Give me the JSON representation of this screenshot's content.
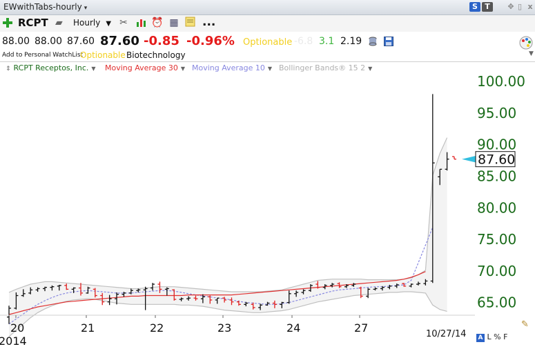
{
  "window": {
    "title": "EWwithTabs-hourly",
    "buttons": [
      "S",
      "T"
    ]
  },
  "toolbar": {
    "symbol": "RCPT",
    "interval": "Hourly",
    "more": "..."
  },
  "quote": {
    "open": "88.00",
    "high": "88.00",
    "low": "87.60",
    "last": "87.60",
    "change": "-0.85",
    "change_pct": "-0.96%",
    "optionable": "Optionable",
    "v1": "-6.8",
    "v2": "3.1",
    "v3": "2.19"
  },
  "info": {
    "watchlist": "Add to Personal WatchList",
    "optionable": "Optionable",
    "sector": "Biotechnology"
  },
  "legend": {
    "symbol": "RCPT Receptos, Inc.",
    "ma30": "Moving Average 30",
    "ma10": "Moving Average 10",
    "bb": "Bollinger Bands® 15 2"
  },
  "colors": {
    "axis_text": "#1a6b1a",
    "ma30": "#e03030",
    "ma10": "#8888e0",
    "bb": "#c0c0c0",
    "bar_up": "#111111",
    "bar_down": "#e02020",
    "last_tag": "#33bfe0"
  },
  "bottom": {
    "date_label": "10/27/14",
    "controls": "L % F",
    "year": "2014"
  },
  "chart_data": {
    "type": "line",
    "subtype": "ohlc-bars",
    "y_ticks": [
      "100.00",
      "95.00",
      "90.00",
      "85.00",
      "80.00",
      "75.00",
      "70.00",
      "65.00"
    ],
    "ylim": [
      63,
      101
    ],
    "x_ticks": [
      "20",
      "21",
      "22",
      "23",
      "24",
      "27"
    ],
    "last_price_label": "87.60",
    "bars": [
      {
        "o": 62.6,
        "h": 64.4,
        "l": 61.5,
        "c": 64.0
      },
      {
        "o": 64.0,
        "h": 66.5,
        "l": 63.8,
        "c": 66.0
      },
      {
        "o": 66.0,
        "h": 67.0,
        "l": 65.8,
        "c": 66.3
      },
      {
        "o": 66.4,
        "h": 67.3,
        "l": 66.2,
        "c": 66.9
      },
      {
        "o": 66.9,
        "h": 67.3,
        "l": 66.6,
        "c": 67.1
      },
      {
        "o": 67.1,
        "h": 67.4,
        "l": 66.7,
        "c": 67.3
      },
      {
        "o": 67.3,
        "h": 67.6,
        "l": 66.8,
        "c": 67.4
      },
      {
        "o": 67.5,
        "h": 67.7,
        "l": 66.8,
        "c": 67.6
      },
      {
        "o": 67.6,
        "h": 67.9,
        "l": 66.9,
        "c": 67.0
      },
      {
        "o": 67.0,
        "h": 67.3,
        "l": 66.4,
        "c": 67.2
      },
      {
        "o": 67.2,
        "h": 68.0,
        "l": 66.0,
        "c": 66.4
      },
      {
        "o": 66.4,
        "h": 67.4,
        "l": 66.3,
        "c": 67.2
      },
      {
        "o": 67.0,
        "h": 67.2,
        "l": 65.7,
        "c": 66.0
      },
      {
        "o": 66.0,
        "h": 66.4,
        "l": 64.5,
        "c": 65.0
      },
      {
        "o": 65.0,
        "h": 66.1,
        "l": 64.5,
        "c": 65.5
      },
      {
        "o": 65.5,
        "h": 66.5,
        "l": 64.6,
        "c": 66.2
      },
      {
        "o": 66.2,
        "h": 66.6,
        "l": 65.8,
        "c": 66.4
      },
      {
        "o": 66.4,
        "h": 67.1,
        "l": 66.2,
        "c": 66.8
      },
      {
        "o": 66.8,
        "h": 67.1,
        "l": 66.5,
        "c": 66.9
      },
      {
        "o": 66.9,
        "h": 67.4,
        "l": 63.7,
        "c": 67.1
      },
      {
        "o": 67.2,
        "h": 68.0,
        "l": 66.8,
        "c": 67.8
      },
      {
        "o": 67.8,
        "h": 68.2,
        "l": 66.4,
        "c": 67.0
      },
      {
        "o": 67.0,
        "h": 67.3,
        "l": 66.0,
        "c": 67.1
      },
      {
        "o": 66.9,
        "h": 67.0,
        "l": 65.2,
        "c": 65.4
      },
      {
        "o": 65.4,
        "h": 65.7,
        "l": 65.1,
        "c": 65.5
      },
      {
        "o": 65.5,
        "h": 65.9,
        "l": 65.2,
        "c": 65.6
      },
      {
        "o": 65.6,
        "h": 66.0,
        "l": 65.2,
        "c": 65.5
      },
      {
        "o": 65.5,
        "h": 66.2,
        "l": 64.8,
        "c": 65.8
      },
      {
        "o": 65.8,
        "h": 66.0,
        "l": 64.7,
        "c": 65.3
      },
      {
        "o": 65.3,
        "h": 65.6,
        "l": 64.7,
        "c": 65.6
      },
      {
        "o": 65.6,
        "h": 65.8,
        "l": 64.9,
        "c": 65.3
      },
      {
        "o": 65.3,
        "h": 65.7,
        "l": 64.5,
        "c": 65.0
      },
      {
        "o": 65.0,
        "h": 65.2,
        "l": 64.4,
        "c": 64.6
      },
      {
        "o": 64.6,
        "h": 65.0,
        "l": 64.3,
        "c": 64.8
      },
      {
        "o": 64.6,
        "h": 64.9,
        "l": 63.8,
        "c": 64.1
      },
      {
        "o": 64.1,
        "h": 64.7,
        "l": 63.7,
        "c": 64.5
      },
      {
        "o": 64.5,
        "h": 65.0,
        "l": 64.4,
        "c": 64.8
      },
      {
        "o": 64.8,
        "h": 65.2,
        "l": 64.0,
        "c": 64.6
      },
      {
        "o": 64.6,
        "h": 65.0,
        "l": 64.0,
        "c": 64.9
      },
      {
        "o": 64.9,
        "h": 66.8,
        "l": 64.7,
        "c": 66.3
      },
      {
        "o": 66.3,
        "h": 66.8,
        "l": 65.8,
        "c": 66.5
      },
      {
        "o": 66.5,
        "h": 67.0,
        "l": 66.2,
        "c": 66.8
      },
      {
        "o": 66.8,
        "h": 67.8,
        "l": 66.6,
        "c": 67.6
      },
      {
        "o": 67.8,
        "h": 68.3,
        "l": 67.1,
        "c": 67.3
      },
      {
        "o": 67.3,
        "h": 67.8,
        "l": 67.0,
        "c": 67.6
      },
      {
        "o": 67.6,
        "h": 68.0,
        "l": 67.3,
        "c": 67.8
      },
      {
        "o": 67.9,
        "h": 68.1,
        "l": 67.2,
        "c": 67.4
      },
      {
        "o": 67.4,
        "h": 67.8,
        "l": 67.2,
        "c": 67.6
      },
      {
        "o": 67.6,
        "h": 68.0,
        "l": 67.4,
        "c": 67.8
      },
      {
        "o": 67.2,
        "h": 67.4,
        "l": 65.6,
        "c": 65.9
      },
      {
        "o": 65.9,
        "h": 67.2,
        "l": 65.6,
        "c": 67.0
      },
      {
        "o": 67.0,
        "h": 67.3,
        "l": 66.8,
        "c": 67.1
      },
      {
        "o": 67.1,
        "h": 67.5,
        "l": 66.8,
        "c": 67.3
      },
      {
        "o": 67.3,
        "h": 67.7,
        "l": 67.0,
        "c": 67.5
      },
      {
        "o": 67.5,
        "h": 67.9,
        "l": 67.2,
        "c": 67.7
      },
      {
        "o": 67.9,
        "h": 68.0,
        "l": 67.4,
        "c": 67.5
      },
      {
        "o": 67.5,
        "h": 67.9,
        "l": 67.3,
        "c": 67.8
      },
      {
        "o": 67.8,
        "h": 68.2,
        "l": 67.6,
        "c": 67.9
      },
      {
        "o": 67.9,
        "h": 68.6,
        "l": 67.6,
        "c": 68.3
      },
      {
        "o": 68.3,
        "h": 97.9,
        "l": 68.0,
        "c": 87.0
      },
      {
        "o": 84.8,
        "h": 86.0,
        "l": 83.5,
        "c": 86.0
      },
      {
        "o": 86.0,
        "h": 88.7,
        "l": 85.8,
        "c": 87.6
      },
      {
        "o": 88.0,
        "h": 88.0,
        "l": 87.6,
        "c": 87.6
      }
    ],
    "ma30": [
      63.0,
      63.3,
      63.6,
      63.9,
      64.2,
      64.4,
      64.6,
      64.8,
      65.0,
      65.1,
      65.2,
      65.3,
      65.4,
      65.5,
      65.6,
      65.7,
      65.8,
      65.9,
      65.9,
      66.0,
      66.0,
      66.0,
      66.0,
      66.0,
      66.0,
      66.1,
      66.1,
      66.1,
      66.1,
      66.1,
      66.1,
      66.1,
      66.2,
      66.3,
      66.4,
      66.5,
      66.6,
      66.7,
      66.8,
      66.9,
      67.0,
      67.1,
      67.2,
      67.3,
      67.4,
      67.5,
      67.6,
      67.7,
      67.8,
      67.9,
      68.0,
      68.1,
      68.2,
      68.3,
      68.4,
      68.6,
      68.9,
      69.3,
      69.8
    ],
    "ma10": [
      61.5,
      62.3,
      63.1,
      63.9,
      64.6,
      65.2,
      65.7,
      66.1,
      66.4,
      66.6,
      66.7,
      66.8,
      66.7,
      66.6,
      66.5,
      66.4,
      66.4,
      66.4,
      66.5,
      66.6,
      66.7,
      66.8,
      66.8,
      66.7,
      66.5,
      66.3,
      66.1,
      65.9,
      65.8,
      65.6,
      65.5,
      65.3,
      65.1,
      64.9,
      64.8,
      64.7,
      64.6,
      64.6,
      64.7,
      64.9,
      65.2,
      65.5,
      65.8,
      66.1,
      66.4,
      66.7,
      66.9,
      67.0,
      67.1,
      67.2,
      67.3,
      67.4,
      67.4,
      67.5,
      67.6,
      67.7,
      68.4,
      71.2,
      74.0,
      76.8
    ],
    "bb_upper": [
      66.5,
      67.0,
      67.4,
      67.8,
      68.0,
      68.2,
      68.2,
      68.1,
      68.0,
      67.9,
      67.8,
      67.7,
      67.6,
      67.5,
      67.4,
      67.3,
      67.2,
      67.1,
      67.1,
      67.2,
      67.3,
      67.4,
      67.4,
      67.4,
      67.3,
      67.2,
      67.1,
      67.0,
      66.9,
      66.8,
      66.7,
      66.6,
      66.6,
      66.6,
      66.6,
      66.6,
      66.7,
      66.8,
      66.9,
      67.2,
      67.5,
      67.8,
      68.1,
      68.4,
      68.5,
      68.6,
      68.6,
      68.6,
      68.6,
      68.6,
      68.5,
      68.5,
      68.5,
      68.5,
      68.5,
      68.6,
      68.8,
      69.3,
      70.0,
      85.0,
      88.5,
      91.0
    ],
    "bb_lower": [
      59.5,
      60.5,
      61.5,
      62.5,
      63.3,
      63.9,
      64.4,
      64.8,
      65.1,
      65.3,
      65.4,
      65.5,
      65.4,
      65.2,
      65.0,
      64.8,
      64.7,
      64.6,
      64.6,
      64.6,
      64.6,
      64.6,
      64.6,
      64.6,
      64.5,
      64.5,
      64.4,
      64.3,
      64.1,
      63.9,
      63.7,
      63.6,
      63.5,
      63.4,
      63.3,
      63.3,
      63.4,
      63.5,
      63.6,
      63.8,
      64.1,
      64.4,
      64.7,
      65.0,
      65.2,
      65.4,
      65.6,
      65.8,
      66.0,
      66.1,
      66.2,
      66.3,
      66.4,
      66.5,
      66.5,
      66.6,
      66.6,
      66.5,
      66.4,
      64.5,
      63.8,
      63.5
    ]
  }
}
